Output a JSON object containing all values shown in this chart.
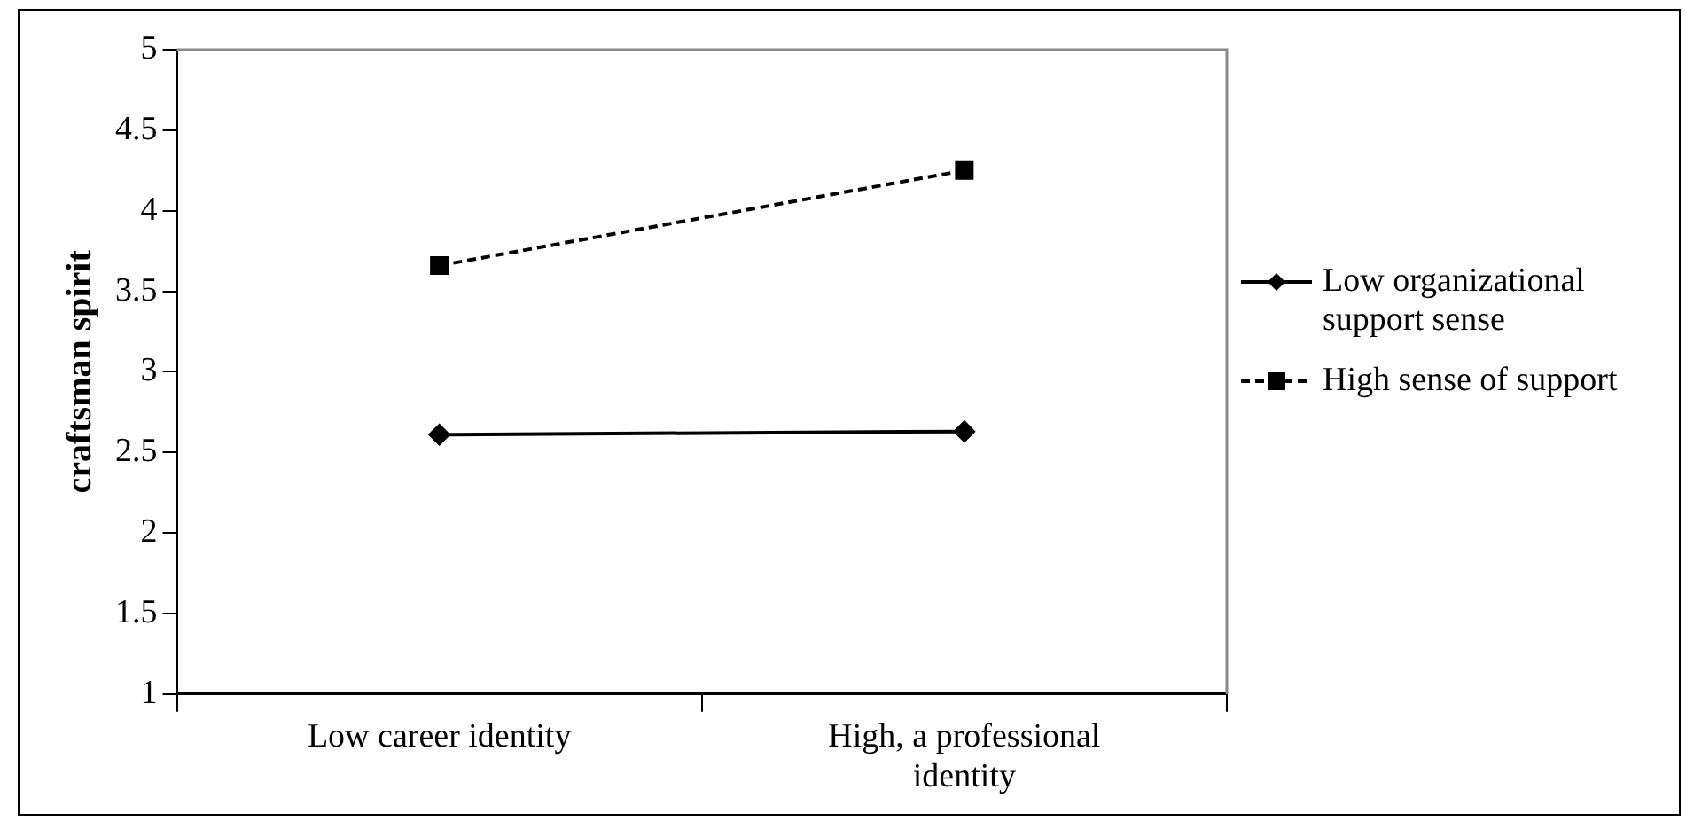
{
  "chart_data": {
    "type": "line",
    "ylabel": "craftsman spirit",
    "categories": [
      "Low career identity",
      "High, a professional identity"
    ],
    "series": [
      {
        "name": "Low organizational support sense",
        "color": "#000000",
        "values": [
          2.61,
          2.63
        ],
        "marker": "diamond",
        "line_style": "solid"
      },
      {
        "name": "High sense of support",
        "color": "#000000",
        "values": [
          3.66,
          4.25
        ],
        "marker": "square",
        "line_style": "dashed"
      }
    ],
    "ylim": [
      1,
      5
    ],
    "yticks": [
      1,
      1.5,
      2,
      2.5,
      3,
      3.5,
      4,
      4.5,
      5
    ],
    "grid": false,
    "legend": "right"
  }
}
